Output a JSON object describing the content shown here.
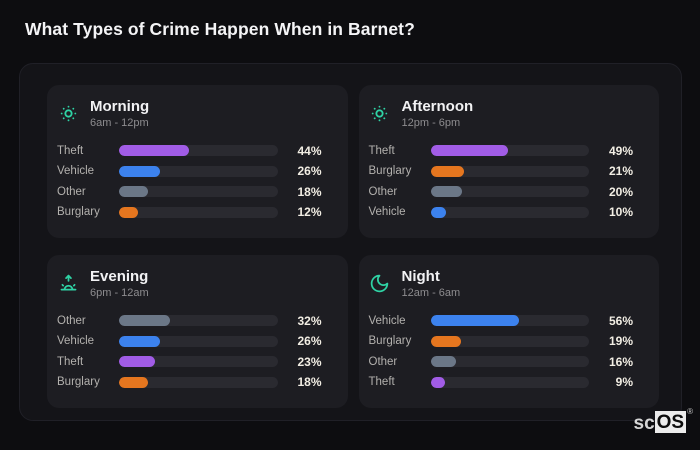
{
  "header": {
    "title": "What Types of Crime Happen When in Barnet?"
  },
  "watermark": {
    "prefix": "sc",
    "suffix": "OS",
    "reg": "®"
  },
  "colors": {
    "theft": "#a15ce6",
    "vehicle": "#3c82ee",
    "other": "#6b7787",
    "burglary": "#e5761f",
    "icon_accent": "#2fd3a5",
    "track": "#2a2a30",
    "card_bg": "#1d1d22",
    "board_bg": "#141418",
    "page_bg": "#0d0d10"
  },
  "panels": [
    {
      "title": "Morning",
      "subtitle": "6am - 12pm",
      "icon": "sun-icon",
      "rows": [
        {
          "label": "Theft",
          "value": 44,
          "pct": "44%",
          "color": "theft"
        },
        {
          "label": "Vehicle",
          "value": 26,
          "pct": "26%",
          "color": "vehicle"
        },
        {
          "label": "Other",
          "value": 18,
          "pct": "18%",
          "color": "other"
        },
        {
          "label": "Burglary",
          "value": 12,
          "pct": "12%",
          "color": "burglary"
        }
      ]
    },
    {
      "title": "Afternoon",
      "subtitle": "12pm - 6pm",
      "icon": "sun-icon",
      "rows": [
        {
          "label": "Theft",
          "value": 49,
          "pct": "49%",
          "color": "theft"
        },
        {
          "label": "Burglary",
          "value": 21,
          "pct": "21%",
          "color": "burglary"
        },
        {
          "label": "Other",
          "value": 20,
          "pct": "20%",
          "color": "other"
        },
        {
          "label": "Vehicle",
          "value": 10,
          "pct": "10%",
          "color": "vehicle"
        }
      ]
    },
    {
      "title": "Evening",
      "subtitle": "6pm - 12am",
      "icon": "sunrise-icon",
      "rows": [
        {
          "label": "Other",
          "value": 32,
          "pct": "32%",
          "color": "other"
        },
        {
          "label": "Vehicle",
          "value": 26,
          "pct": "26%",
          "color": "vehicle"
        },
        {
          "label": "Theft",
          "value": 23,
          "pct": "23%",
          "color": "theft"
        },
        {
          "label": "Burglary",
          "value": 18,
          "pct": "18%",
          "color": "burglary"
        }
      ]
    },
    {
      "title": "Night",
      "subtitle": "12am - 6am",
      "icon": "moon-icon",
      "rows": [
        {
          "label": "Vehicle",
          "value": 56,
          "pct": "56%",
          "color": "vehicle"
        },
        {
          "label": "Burglary",
          "value": 19,
          "pct": "19%",
          "color": "burglary"
        },
        {
          "label": "Other",
          "value": 16,
          "pct": "16%",
          "color": "other"
        },
        {
          "label": "Theft",
          "value": 9,
          "pct": "9%",
          "color": "theft"
        }
      ]
    }
  ],
  "chart_data": [
    {
      "type": "bar",
      "orientation": "horizontal",
      "title": "Morning",
      "subtitle": "6am - 12pm",
      "categories": [
        "Theft",
        "Vehicle",
        "Other",
        "Burglary"
      ],
      "values": [
        44,
        26,
        18,
        12
      ],
      "value_unit": "%",
      "xlim": [
        0,
        100
      ],
      "grid": false,
      "bar_colors": [
        "#a15ce6",
        "#3c82ee",
        "#6b7787",
        "#e5761f"
      ]
    },
    {
      "type": "bar",
      "orientation": "horizontal",
      "title": "Afternoon",
      "subtitle": "12pm - 6pm",
      "categories": [
        "Theft",
        "Burglary",
        "Other",
        "Vehicle"
      ],
      "values": [
        49,
        21,
        20,
        10
      ],
      "value_unit": "%",
      "xlim": [
        0,
        100
      ],
      "grid": false,
      "bar_colors": [
        "#a15ce6",
        "#e5761f",
        "#6b7787",
        "#3c82ee"
      ]
    },
    {
      "type": "bar",
      "orientation": "horizontal",
      "title": "Evening",
      "subtitle": "6pm - 12am",
      "categories": [
        "Other",
        "Vehicle",
        "Theft",
        "Burglary"
      ],
      "values": [
        32,
        26,
        23,
        18
      ],
      "value_unit": "%",
      "xlim": [
        0,
        100
      ],
      "grid": false,
      "bar_colors": [
        "#6b7787",
        "#3c82ee",
        "#a15ce6",
        "#e5761f"
      ]
    },
    {
      "type": "bar",
      "orientation": "horizontal",
      "title": "Night",
      "subtitle": "12am - 6am",
      "categories": [
        "Vehicle",
        "Burglary",
        "Other",
        "Theft"
      ],
      "values": [
        56,
        19,
        16,
        9
      ],
      "value_unit": "%",
      "xlim": [
        0,
        100
      ],
      "grid": false,
      "bar_colors": [
        "#3c82ee",
        "#e5761f",
        "#6b7787",
        "#a15ce6"
      ]
    }
  ]
}
